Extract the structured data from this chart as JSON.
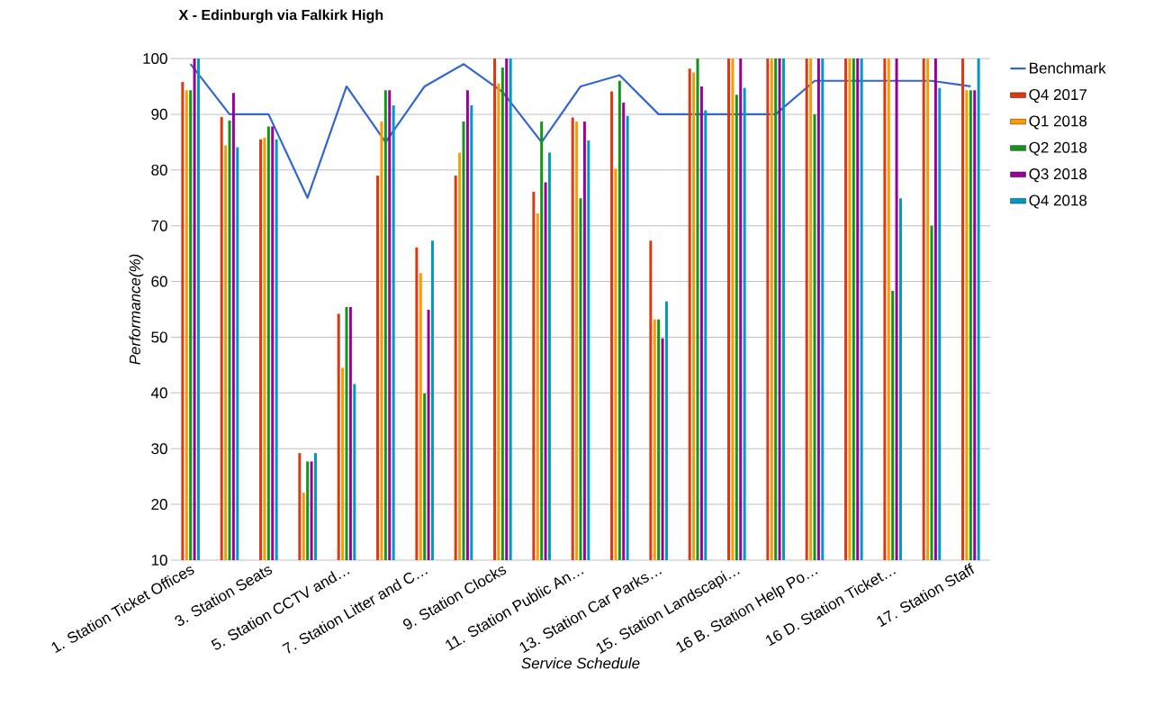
{
  "chart_data": {
    "type": "bar",
    "title": "X - Edinburgh via Falkirk High",
    "xlabel": "Service Schedule",
    "ylabel": "Performance(%)",
    "categories": [
      "1. Station Ticket Offices",
      null,
      "3. Station Seats",
      null,
      "5. Station CCTV and…",
      null,
      "7. Station Litter and C…",
      null,
      "9. Station Clocks",
      null,
      "11. Station Public An…",
      null,
      "13. Station Car Parks…",
      null,
      "15. Station Landscapi…",
      null,
      "16 B. Station Help Po…",
      null,
      "16 D. Station Ticket…",
      null,
      "17. Station Staff"
    ],
    "series": [
      {
        "name": "Benchmark",
        "type": "line",
        "color": "#3366cc",
        "values": [
          99,
          90,
          90,
          75,
          95,
          85,
          95,
          99,
          94,
          85,
          95,
          97,
          90,
          90,
          90,
          90,
          96,
          96,
          96,
          96,
          95
        ]
      },
      {
        "name": "Q4 2017",
        "color": "#dc3912",
        "values": [
          95.8,
          89.5,
          85.5,
          29.2,
          54.2,
          79.0,
          66.1,
          79.0,
          100,
          76.1,
          89.4,
          94.1,
          67.3,
          98.2,
          100,
          100,
          100,
          100,
          100,
          100,
          100
        ]
      },
      {
        "name": "Q1 2018",
        "color": "#ff9900",
        "values": [
          94.3,
          84.4,
          85.8,
          22.1,
          44.5,
          88.7,
          61.5,
          83.1,
          95.5,
          72.2,
          88.7,
          80.2,
          53.2,
          97.5,
          100,
          100,
          100,
          100,
          100,
          100,
          94.3
        ]
      },
      {
        "name": "Q2 2018",
        "color": "#109618",
        "values": [
          94.3,
          88.9,
          87.8,
          27.7,
          55.4,
          94.3,
          39.9,
          88.7,
          98.4,
          88.7,
          74.9,
          96.0,
          53.2,
          100,
          93.5,
          100,
          90,
          100,
          58.3,
          70.0,
          94.3
        ]
      },
      {
        "name": "Q3 2018",
        "color": "#990099",
        "values": [
          100,
          93.8,
          87.8,
          27.7,
          55.4,
          94.3,
          54.9,
          94.3,
          100,
          77.8,
          88.7,
          92.1,
          49.8,
          95.0,
          100,
          100,
          100,
          100,
          100,
          100,
          94.3
        ]
      },
      {
        "name": "Q4 2018",
        "color": "#0099c6",
        "values": [
          100,
          84.1,
          85.5,
          29.2,
          41.6,
          91.6,
          67.3,
          91.6,
          100,
          83.1,
          85.3,
          89.7,
          56.4,
          90.7,
          94.7,
          100,
          100,
          100,
          74.9,
          94.7,
          100
        ]
      }
    ],
    "ylim": [
      10,
      100
    ],
    "yticks": [
      10,
      20,
      30,
      40,
      50,
      60,
      70,
      80,
      90,
      100
    ],
    "grid": "y",
    "legend": "right"
  }
}
